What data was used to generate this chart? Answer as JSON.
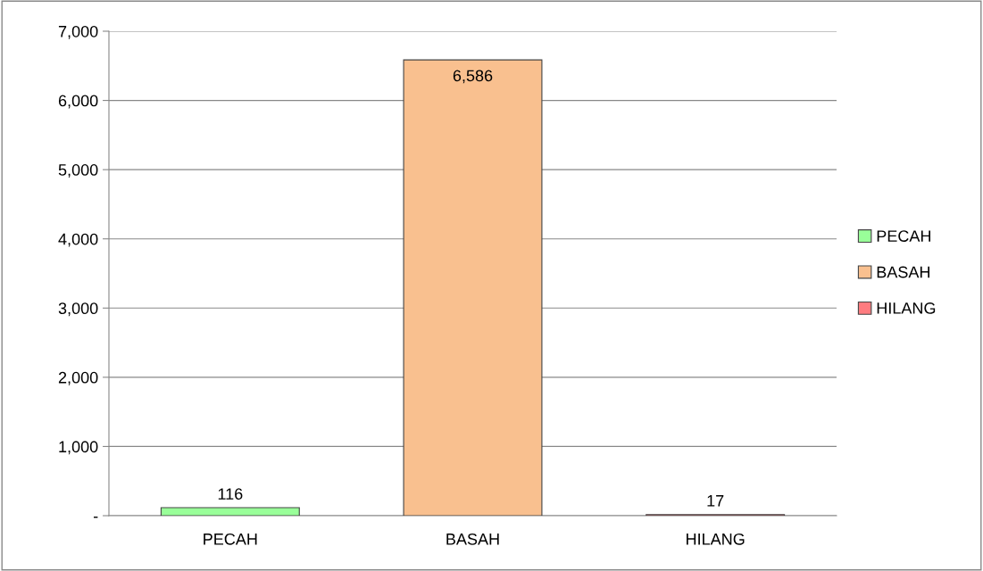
{
  "chart_data": {
    "type": "bar",
    "categories": [
      "PECAH",
      "BASAH",
      "HILANG"
    ],
    "series": [
      {
        "name": "PECAH",
        "color": "#99ff99",
        "values": [
          116,
          null,
          null
        ],
        "value_labels": [
          "116",
          null,
          null
        ]
      },
      {
        "name": "BASAH",
        "color": "#f9c08f",
        "values": [
          null,
          6586,
          null
        ],
        "value_labels": [
          null,
          "6,586",
          null
        ]
      },
      {
        "name": "HILANG",
        "color": "#ff7c80",
        "values": [
          null,
          null,
          17
        ],
        "value_labels": [
          null,
          null,
          "17"
        ]
      }
    ],
    "ylim": [
      0,
      7000
    ],
    "yticks": [
      {
        "value": 0,
        "label": "-"
      },
      {
        "value": 1000,
        "label": "1,000"
      },
      {
        "value": 2000,
        "label": "2,000"
      },
      {
        "value": 3000,
        "label": "3,000"
      },
      {
        "value": 4000,
        "label": "4,000"
      },
      {
        "value": 5000,
        "label": "5,000"
      },
      {
        "value": 6000,
        "label": "6,000"
      },
      {
        "value": 7000,
        "label": "7,000"
      }
    ],
    "grid": "y",
    "legend": "right"
  }
}
